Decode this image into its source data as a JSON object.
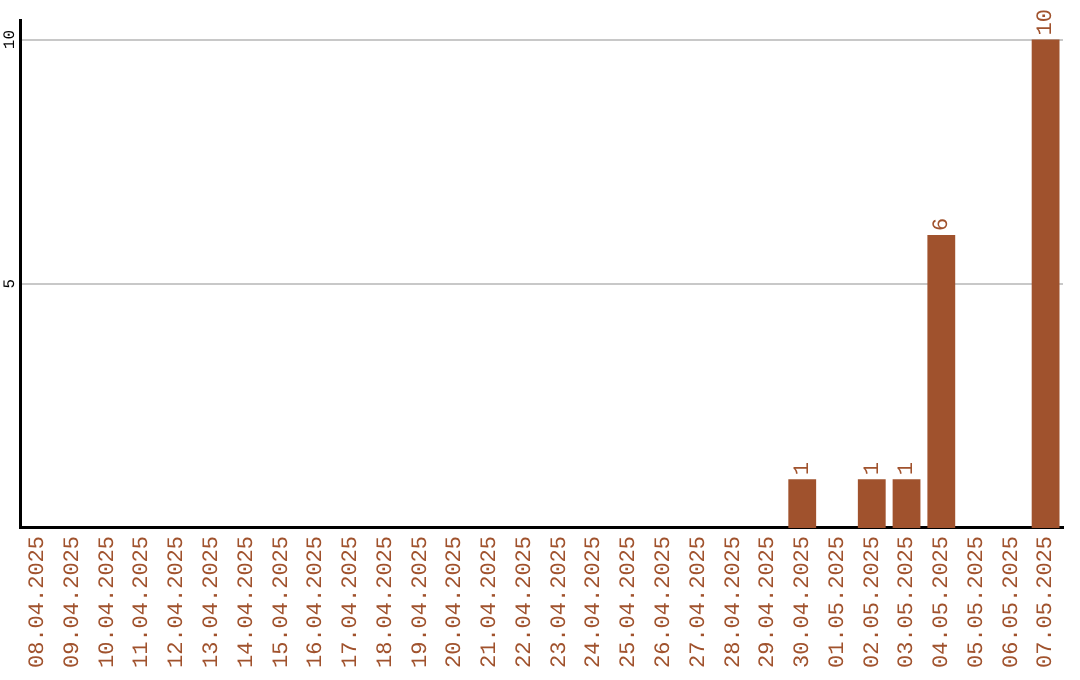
{
  "chart_data": {
    "type": "bar",
    "categories": [
      "08.04.2025",
      "09.04.2025",
      "10.04.2025",
      "11.04.2025",
      "12.04.2025",
      "13.04.2025",
      "14.04.2025",
      "15.04.2025",
      "16.04.2025",
      "17.04.2025",
      "18.04.2025",
      "19.04.2025",
      "20.04.2025",
      "21.04.2025",
      "22.04.2025",
      "23.04.2025",
      "24.04.2025",
      "25.04.2025",
      "26.04.2025",
      "27.04.2025",
      "28.04.2025",
      "29.04.2025",
      "30.04.2025",
      "01.05.2025",
      "02.05.2025",
      "03.05.2025",
      "04.05.2025",
      "05.05.2025",
      "06.05.2025",
      "07.05.2025"
    ],
    "values": [
      0,
      0,
      0,
      0,
      0,
      0,
      0,
      0,
      0,
      0,
      0,
      0,
      0,
      0,
      0,
      0,
      0,
      0,
      0,
      0,
      0,
      0,
      1,
      0,
      1,
      1,
      6,
      0,
      0,
      10
    ],
    "value_labels": [
      null,
      null,
      null,
      null,
      null,
      null,
      null,
      null,
      null,
      null,
      null,
      null,
      null,
      null,
      null,
      null,
      null,
      null,
      null,
      null,
      null,
      null,
      "1",
      null,
      "1",
      "1",
      "6",
      null,
      null,
      "10"
    ],
    "color": "#a0522d",
    "ylim": [
      0,
      10.4
    ],
    "yticks": [
      5,
      10
    ],
    "grid": "y"
  }
}
